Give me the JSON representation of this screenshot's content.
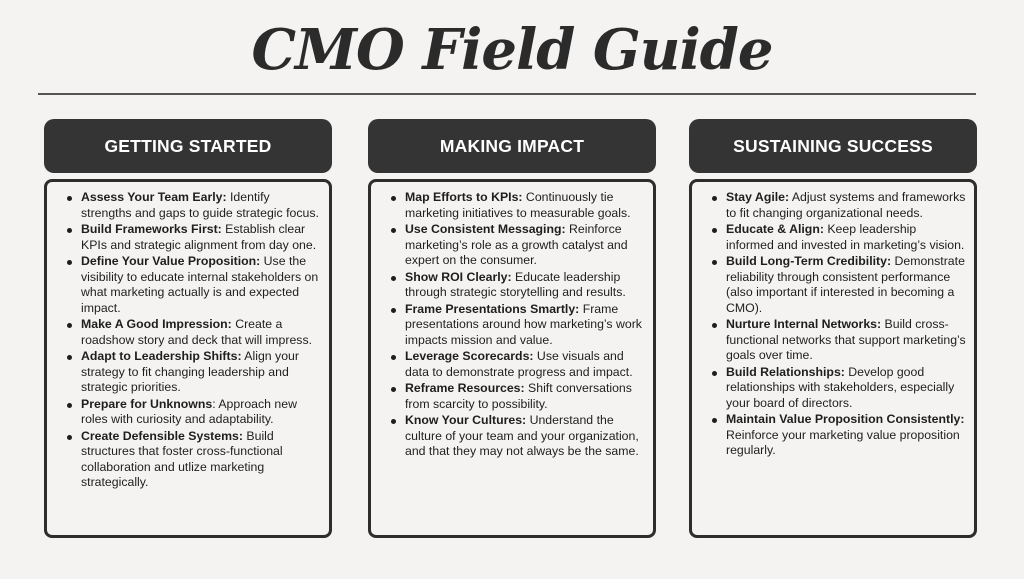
{
  "title": "CMO Field Guide",
  "columns": [
    {
      "heading": "GETTING STARTED",
      "items": [
        {
          "term": "Assess Your Team Early:",
          "text": " Identify strengths and gaps to guide strategic focus."
        },
        {
          "term": "Build Frameworks First:",
          "text": " Establish clear KPIs and strategic alignment from day one."
        },
        {
          "term": "Define Your Value Proposition:",
          "text": " Use the visibility to educate internal stakeholders on what marketing actually is and expected impact."
        },
        {
          "term": "Make A Good Impression:",
          "text": " Create a roadshow story and deck that will impress."
        },
        {
          "term": "Adapt to Leadership Shifts:",
          "text": " Align your strategy to fit changing leadership and strategic priorities."
        },
        {
          "term": "Prepare for Unknowns",
          "text": ": Approach new roles with curiosity and adaptability."
        },
        {
          "term": "Create Defensible Systems:",
          "text": " Build structures that foster cross-functional collaboration and utlize marketing strategically."
        }
      ]
    },
    {
      "heading": "MAKING IMPACT",
      "items": [
        {
          "term": "Map Efforts to KPIs:",
          "text": " Continuously tie marketing initiatives to measurable goals."
        },
        {
          "term": "Use Consistent Messaging:",
          "text": " Reinforce marketing’s role as a growth catalyst and expert on the consumer."
        },
        {
          "term": "Show ROI Clearly:",
          "text": " Educate leadership through strategic storytelling and results."
        },
        {
          "term": "Frame Presentations Smartly:",
          "text": " Frame presentations around how marketing’s work impacts mission and value."
        },
        {
          "term": "Leverage Scorecards:",
          "text": " Use visuals and data to demonstrate progress and impact."
        },
        {
          "term": "Reframe Resources:",
          "text": " Shift conversations from scarcity to possibility."
        },
        {
          "term": "Know Your Cultures:",
          "text": " Understand the culture of your team and your organization, and that they may not always be the same."
        }
      ]
    },
    {
      "heading": "SUSTAINING SUCCESS",
      "items": [
        {
          "term": "Stay Agile:",
          "text": " Adjust systems and frameworks to fit changing organizational needs."
        },
        {
          "term": "Educate & Align:",
          "text": " Keep leadership informed and invested in marketing’s vision."
        },
        {
          "term": "Build Long-Term Credibility:",
          "text": " Demonstrate reliability through consistent performance (also important if interested in becoming a CMO)."
        },
        {
          "term": "Nurture Internal Networks:",
          "text": " Build cross-functional networks that support marketing’s goals over time."
        },
        {
          "term": "Build Relationships:",
          "text": " Develop good relationships with stakeholders, especially your board of directors."
        },
        {
          "term": "Maintain Value Proposition Consistently:",
          "text": " Reinforce your marketing value proposition regularly."
        }
      ]
    }
  ]
}
